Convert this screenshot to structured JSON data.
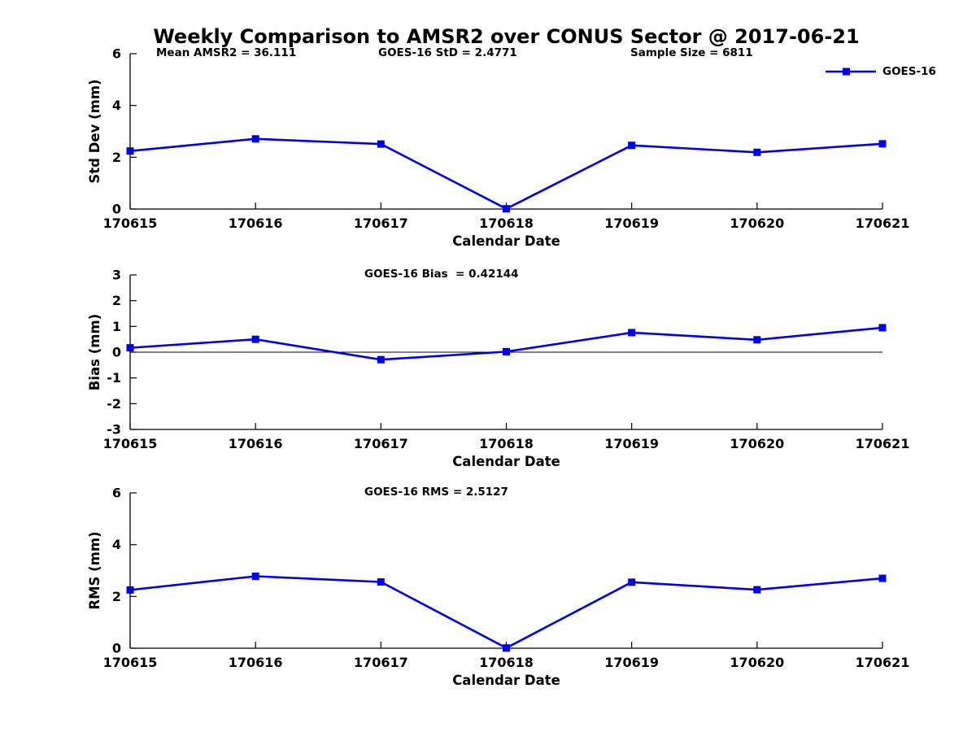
{
  "title": "Weekly Comparison to AMSR2 over CONUS Sector @ 2017-06-21",
  "annotations": {
    "mean_amsr2": "Mean AMSR2 = 36.111",
    "goes16_std": "GOES-16 StD = 2.4771",
    "sample_size": "Sample Size = 6811",
    "goes16_bias": "GOES-16 Bias  = 0.42144",
    "goes16_rms": "GOES-16 RMS = 2.5127"
  },
  "legend": {
    "label": "GOES-16",
    "marker": "square",
    "line_color": "#0000EE"
  },
  "colors": {
    "line": "#0000EE",
    "axis": "#000000",
    "text": "#000000",
    "background": "#FFFFFF"
  },
  "chart_data": [
    {
      "type": "line",
      "title": "",
      "categories": [
        "170615",
        "170616",
        "170617",
        "170618",
        "170619",
        "170620",
        "170621"
      ],
      "series": [
        {
          "name": "GOES-16",
          "values": [
            2.24,
            2.71,
            2.51,
            0.01,
            2.46,
            2.19,
            2.52
          ]
        }
      ],
      "xlabel": "Calendar Date",
      "ylabel": "Std Dev (mm)",
      "ylim": [
        0,
        6
      ],
      "yticks": [
        0,
        2,
        4,
        6
      ],
      "grid": false,
      "zero_line": false,
      "legend_position": "top-right-outside"
    },
    {
      "type": "line",
      "title": "",
      "categories": [
        "170615",
        "170616",
        "170617",
        "170618",
        "170619",
        "170620",
        "170621"
      ],
      "series": [
        {
          "name": "GOES-16",
          "values": [
            0.17,
            0.5,
            -0.29,
            0.02,
            0.76,
            0.48,
            0.95
          ]
        }
      ],
      "xlabel": "Calendar Date",
      "ylabel": "Bias (mm)",
      "ylim": [
        -3,
        3
      ],
      "yticks": [
        -3,
        -2,
        -1,
        0,
        1,
        2,
        3
      ],
      "grid": false,
      "zero_line": true,
      "legend_position": "none"
    },
    {
      "type": "line",
      "title": "",
      "categories": [
        "170615",
        "170616",
        "170617",
        "170618",
        "170619",
        "170620",
        "170621"
      ],
      "series": [
        {
          "name": "GOES-16",
          "values": [
            2.25,
            2.78,
            2.56,
            0.01,
            2.55,
            2.26,
            2.7
          ]
        }
      ],
      "xlabel": "Calendar Date",
      "ylabel": "RMS (mm)",
      "ylim": [
        0,
        6
      ],
      "yticks": [
        0,
        2,
        4,
        6
      ],
      "grid": false,
      "zero_line": false,
      "legend_position": "none"
    }
  ]
}
